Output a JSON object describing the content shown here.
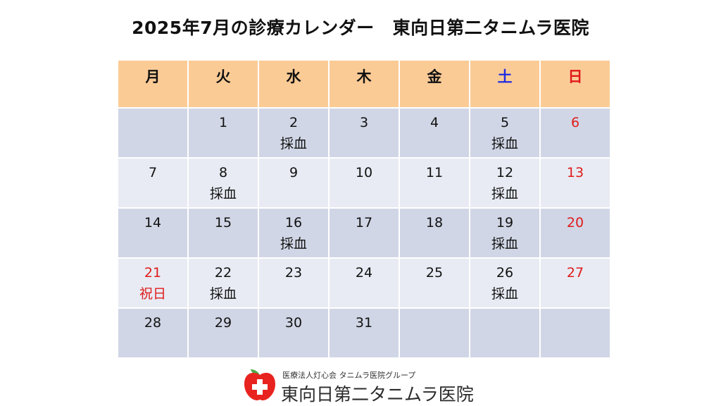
{
  "title": {
    "left": "2025年7月の診療カレンダー",
    "right": "東向日第二タニムラ医院"
  },
  "weekdays": [
    "月",
    "火",
    "水",
    "木",
    "金",
    "土",
    "日"
  ],
  "weeks": [
    [
      {
        "n": "",
        "note": ""
      },
      {
        "n": "1",
        "note": ""
      },
      {
        "n": "2",
        "note": "採血"
      },
      {
        "n": "3",
        "note": ""
      },
      {
        "n": "4",
        "note": ""
      },
      {
        "n": "5",
        "note": "採血"
      },
      {
        "n": "6",
        "note": ""
      }
    ],
    [
      {
        "n": "7",
        "note": ""
      },
      {
        "n": "8",
        "note": "採血"
      },
      {
        "n": "9",
        "note": ""
      },
      {
        "n": "10",
        "note": ""
      },
      {
        "n": "11",
        "note": ""
      },
      {
        "n": "12",
        "note": "採血"
      },
      {
        "n": "13",
        "note": ""
      }
    ],
    [
      {
        "n": "14",
        "note": ""
      },
      {
        "n": "15",
        "note": ""
      },
      {
        "n": "16",
        "note": "採血"
      },
      {
        "n": "17",
        "note": ""
      },
      {
        "n": "18",
        "note": ""
      },
      {
        "n": "19",
        "note": "採血"
      },
      {
        "n": "20",
        "note": ""
      }
    ],
    [
      {
        "n": "21",
        "note": "祝日"
      },
      {
        "n": "22",
        "note": "採血"
      },
      {
        "n": "23",
        "note": ""
      },
      {
        "n": "24",
        "note": ""
      },
      {
        "n": "25",
        "note": ""
      },
      {
        "n": "26",
        "note": "採血"
      },
      {
        "n": "27",
        "note": ""
      }
    ],
    [
      {
        "n": "28",
        "note": ""
      },
      {
        "n": "29",
        "note": ""
      },
      {
        "n": "30",
        "note": ""
      },
      {
        "n": "31",
        "note": ""
      },
      {
        "n": "",
        "note": ""
      },
      {
        "n": "",
        "note": ""
      },
      {
        "n": "",
        "note": ""
      }
    ]
  ],
  "logo": {
    "subtitle": "医療法人灯心会 タニムラ医院グループ",
    "name": "東向日第二タニムラ医院"
  },
  "colors": {
    "header_bg": "#fbcb96",
    "row_dark": "#d0d6e5",
    "row_light": "#e8ebf3",
    "saturday": "#1f2ee0",
    "sunday_holiday": "#e01b1b",
    "logo_red": "#e8231f"
  }
}
